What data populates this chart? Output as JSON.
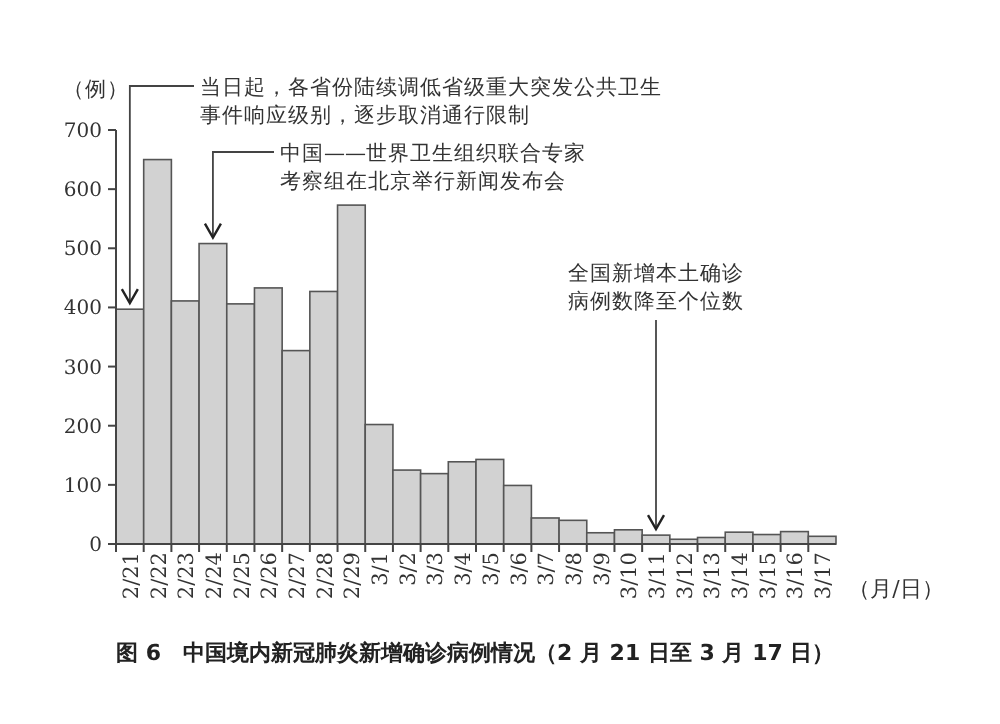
{
  "chart_data": {
    "type": "bar",
    "title": "图 6　中国境内新冠肺炎新增确诊病例情况（2 月 21 日至 3 月 17 日）",
    "ylabel": "（例）",
    "xlabel": "（月/日）",
    "categories": [
      "2/21",
      "2/22",
      "2/23",
      "2/24",
      "2/25",
      "2/26",
      "2/27",
      "2/28",
      "2/29",
      "3/1",
      "3/2",
      "3/3",
      "3/4",
      "3/5",
      "3/6",
      "3/7",
      "3/8",
      "3/9",
      "3/10",
      "3/11",
      "3/12",
      "3/13",
      "3/14",
      "3/15",
      "3/16",
      "3/17"
    ],
    "values": [
      397,
      650,
      411,
      508,
      406,
      433,
      327,
      427,
      573,
      202,
      125,
      119,
      139,
      143,
      99,
      44,
      40,
      19,
      24,
      15,
      8,
      11,
      20,
      16,
      21,
      13
    ],
    "color": "#d2d2d2",
    "ylim": [
      0,
      700
    ],
    "yticks": [
      0,
      100,
      200,
      300,
      400,
      500,
      600,
      700
    ],
    "annotations": [
      {
        "text": "当日起，各省份陆续调低省级重大突发公共卫生事件响应级别，逐步取消通行限制",
        "x": "2/21",
        "y": 397
      },
      {
        "text": "中国——世界卫生组织联合专家考察组在北京举行新闻发布会",
        "x": "2/24",
        "y": 508
      },
      {
        "text": "全国新增本土确诊病例数降至个位数",
        "x": "3/11",
        "y": 15
      }
    ],
    "grid": false
  }
}
